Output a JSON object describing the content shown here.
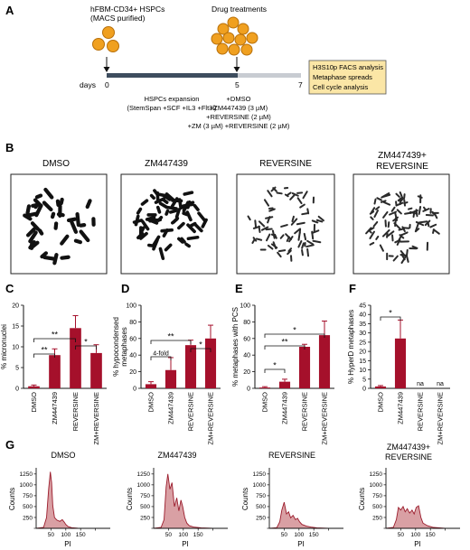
{
  "panels": {
    "A": "A",
    "B": "B",
    "C": "C",
    "D": "D",
    "E": "E",
    "F": "F",
    "G": "G"
  },
  "timeline": {
    "cells_label_1": "hFBM-CD34+ HSPCs",
    "cells_label_2": "(MACS purified)",
    "drug_label": "Drug treatments",
    "days_label": "days",
    "ticks": [
      "0",
      "5",
      "7"
    ],
    "expansion_label": "HSPCs expansion",
    "expansion_media": "(StemSpan +SCF +IL3 +Flt3l)",
    "treatments": [
      "+DMSO",
      "+ZM447439 (3 µM)",
      "+REVERSINE (2 µM)",
      "+ZM (3 µM) +REVERSINE (2 µM)"
    ],
    "analyses": [
      "H3S10p FACS analysis",
      "Metaphase spreads",
      "Cell cycle analysis"
    ]
  },
  "spreads": [
    "DMSO",
    "ZM447439",
    "REVERSINE",
    "ZM447439+\nREVERSINE"
  ],
  "spread_titles": {
    "t1": "DMSO",
    "t2": "ZM447439",
    "t3": "REVERSINE",
    "t4a": "ZM447439+",
    "t4b": "REVERSINE"
  },
  "chart_data": [
    {
      "type": "bar",
      "panel": "C",
      "categories": [
        "DMSO",
        "ZM447439",
        "REVERSINE",
        "ZM+REVERSINE"
      ],
      "values": [
        0.5,
        8,
        14.5,
        8.5
      ],
      "errors": [
        0.3,
        1.5,
        3,
        2
      ],
      "ylabel": "% micronuclei",
      "ylim": [
        0,
        20
      ],
      "yticks": [
        0,
        5,
        10,
        15,
        20
      ],
      "annotations": [
        "**",
        "**",
        "*"
      ]
    },
    {
      "type": "bar",
      "panel": "D",
      "categories": [
        "DMSO",
        "ZM447439",
        "REVERSINE",
        "ZM+REVERSINE"
      ],
      "values": [
        5,
        22,
        52,
        60
      ],
      "errors": [
        3,
        15,
        6,
        16
      ],
      "ylabel": "% hypocondensed metaphases",
      "ylim": [
        0,
        100
      ],
      "yticks": [
        0,
        20,
        40,
        60,
        80,
        100
      ],
      "annotations": [
        "4-fold",
        "**",
        "*"
      ]
    },
    {
      "type": "bar",
      "panel": "E",
      "categories": [
        "DMSO",
        "ZM447439",
        "REVERSINE",
        "ZM+REVERSINE"
      ],
      "values": [
        1,
        8,
        50,
        64
      ],
      "errors": [
        1,
        3,
        3,
        17
      ],
      "ylabel": "% metaphases with PCS",
      "ylim": [
        0,
        100
      ],
      "yticks": [
        0,
        20,
        40,
        60,
        80,
        100
      ],
      "annotations": [
        "*",
        "**",
        "*"
      ]
    },
    {
      "type": "bar",
      "panel": "F",
      "categories": [
        "DMSO",
        "ZM447439",
        "REVERSINE",
        "ZM+REVERSINE"
      ],
      "values": [
        1,
        27,
        null,
        null
      ],
      "errors": [
        0.5,
        10,
        null,
        null
      ],
      "value_labels": [
        null,
        null,
        "na",
        "na"
      ],
      "ylabel": "% HyperD metaphases",
      "ylim": [
        0,
        45
      ],
      "yticks": [
        0,
        5,
        10,
        15,
        20,
        25,
        30,
        35,
        40,
        45
      ],
      "annotations": [
        "*"
      ]
    },
    {
      "type": "area",
      "panel": "G",
      "title": "DMSO",
      "xlabel": "PI",
      "ylabel": "Counts",
      "xlim": [
        0,
        250
      ],
      "ylim": [
        0,
        1350
      ],
      "xticks": [
        50,
        100,
        150,
        200
      ],
      "yticks": [
        0,
        250,
        500,
        750,
        1000,
        1250
      ],
      "x": [
        0,
        25,
        35,
        42,
        48,
        52,
        56,
        62,
        70,
        80,
        88,
        95,
        100,
        108,
        120,
        140,
        180,
        250
      ],
      "y": [
        0,
        20,
        250,
        900,
        1300,
        1050,
        520,
        250,
        190,
        160,
        200,
        140,
        90,
        40,
        15,
        5,
        0,
        0
      ]
    },
    {
      "type": "area",
      "panel": "G",
      "title": "ZM447439",
      "xlabel": "PI",
      "ylabel": "Counts",
      "xlim": [
        0,
        250
      ],
      "ylim": [
        0,
        1350
      ],
      "xticks": [
        50,
        100,
        150,
        200
      ],
      "yticks": [
        0,
        250,
        500,
        750,
        1000,
        1250
      ],
      "x": [
        0,
        25,
        35,
        42,
        48,
        55,
        62,
        70,
        78,
        85,
        92,
        98,
        105,
        112,
        120,
        135,
        160,
        200,
        250
      ],
      "y": [
        0,
        20,
        200,
        950,
        1250,
        900,
        1050,
        500,
        700,
        400,
        650,
        500,
        250,
        120,
        60,
        30,
        10,
        0,
        0
      ]
    },
    {
      "type": "area",
      "panel": "G",
      "title": "REVERSINE",
      "xlabel": "PI",
      "ylabel": "Counts",
      "xlim": [
        0,
        250
      ],
      "ylim": [
        0,
        1350
      ],
      "xticks": [
        50,
        100,
        150,
        200
      ],
      "yticks": [
        0,
        250,
        500,
        750,
        1000,
        1250
      ],
      "x": [
        0,
        25,
        35,
        42,
        50,
        58,
        65,
        72,
        80,
        88,
        95,
        102,
        110,
        125,
        140,
        160,
        200,
        250
      ],
      "y": [
        0,
        15,
        150,
        420,
        600,
        330,
        380,
        240,
        300,
        200,
        230,
        150,
        90,
        50,
        30,
        10,
        0,
        0
      ]
    },
    {
      "type": "area",
      "panel": "G",
      "title": "ZM447439+\nREVERSINE",
      "xlabel": "PI",
      "ylabel": "Counts",
      "xlim": [
        0,
        250
      ],
      "ylim": [
        0,
        1350
      ],
      "xticks": [
        50,
        100,
        150,
        200
      ],
      "yticks": [
        0,
        250,
        500,
        750,
        1000,
        1250
      ],
      "x": [
        0,
        25,
        35,
        42,
        50,
        58,
        65,
        72,
        80,
        88,
        95,
        102,
        110,
        118,
        125,
        140,
        160,
        200,
        250
      ],
      "y": [
        0,
        20,
        200,
        480,
        420,
        500,
        380,
        450,
        350,
        420,
        330,
        480,
        520,
        250,
        120,
        60,
        20,
        0,
        0
      ]
    }
  ],
  "colors": {
    "bar": "#a5102b",
    "area_fill": "#d9a0a4",
    "area_line": "#9b1c2c",
    "timeline_dark": "#3e4d5e",
    "timeline_light": "#c8ccd2",
    "analysis_box": "#fbe6a6"
  }
}
